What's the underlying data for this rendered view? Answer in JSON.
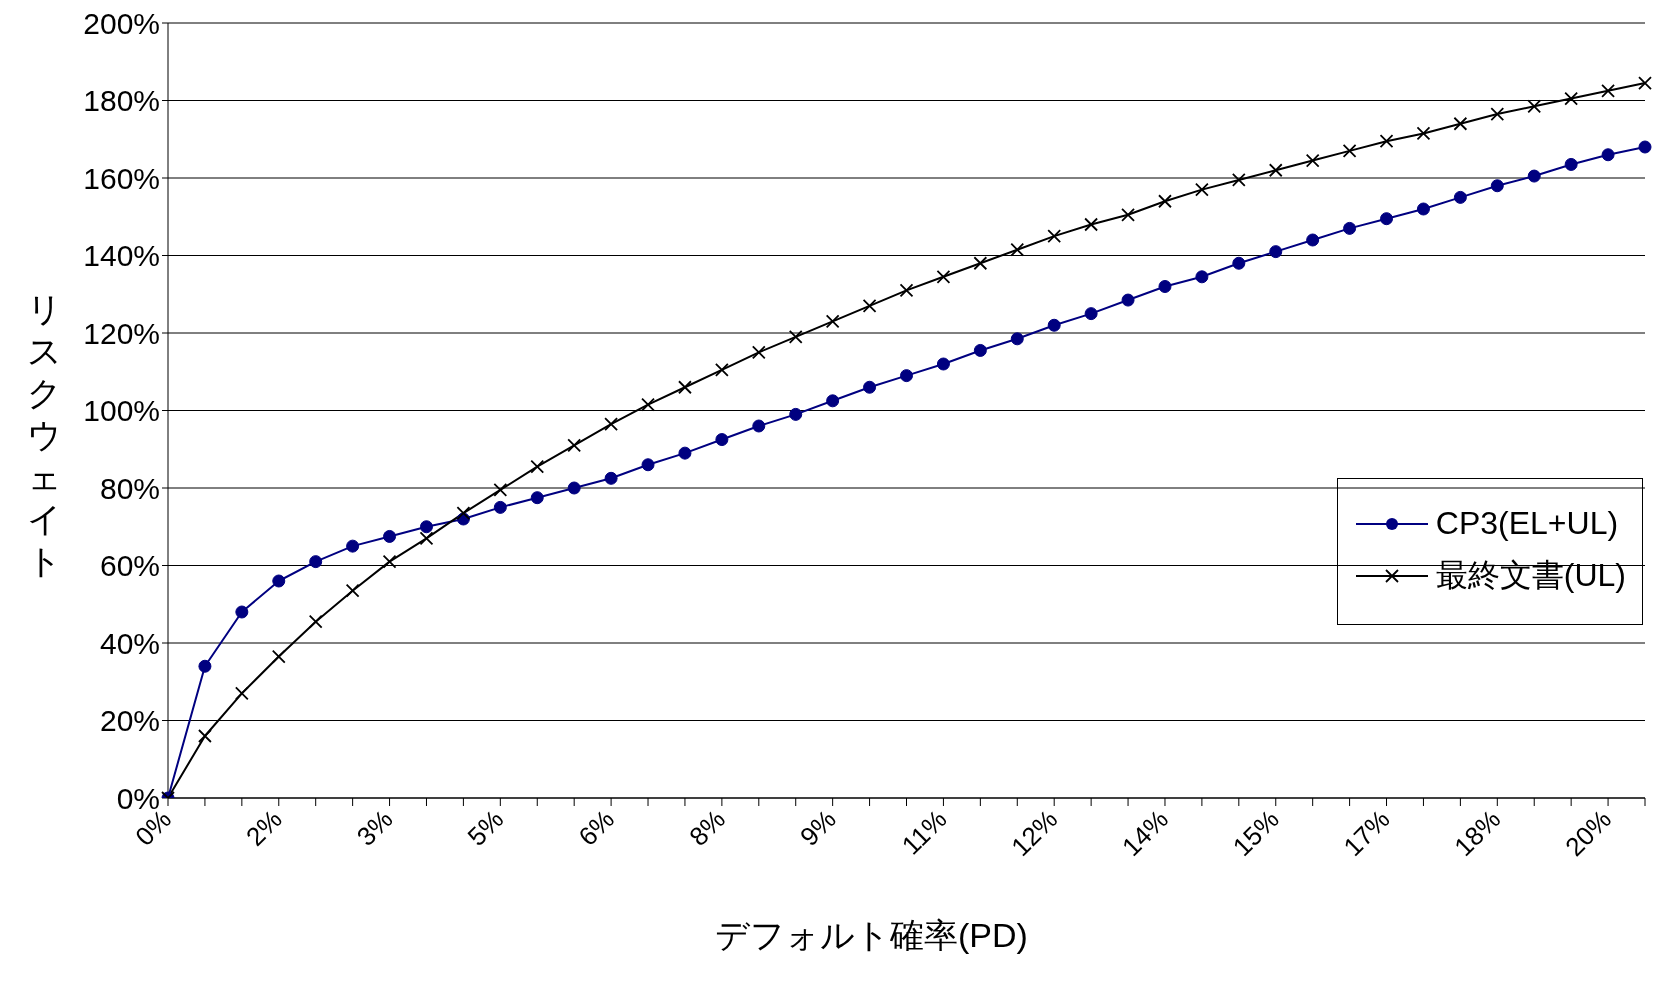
{
  "chart_data": {
    "type": "line",
    "xlabel": "デフォルト確率(PD)",
    "ylabel": "リスクウェイト",
    "categories": [
      "0%",
      null,
      null,
      "2%",
      null,
      null,
      "3%",
      null,
      null,
      "5%",
      null,
      null,
      "6%",
      null,
      null,
      "8%",
      null,
      null,
      "9%",
      null,
      null,
      "11%",
      null,
      null,
      "12%",
      null,
      null,
      "14%",
      null,
      null,
      "15%",
      null,
      null,
      "17%",
      null,
      null,
      "18%",
      null,
      null,
      "20%",
      null
    ],
    "series": [
      {
        "name": "CP3(EL+UL)",
        "color": "#000080",
        "marker": "circle",
        "values": [
          0,
          34,
          48,
          56,
          61,
          65,
          67.5,
          70,
          72,
          75,
          77.5,
          80,
          82.5,
          86,
          89,
          92.5,
          96,
          99,
          102.5,
          106,
          109,
          112,
          115.5,
          118.5,
          122,
          125,
          128.5,
          132,
          134.5,
          138,
          141,
          144,
          147,
          149.5,
          152,
          155,
          158,
          160.5,
          163.5,
          166,
          168
        ]
      },
      {
        "name": "最終文書(UL)",
        "color": "#000000",
        "marker": "cross",
        "values": [
          0,
          16,
          27,
          36.5,
          45.5,
          53.5,
          61,
          67,
          73.5,
          79.5,
          85.5,
          91,
          96.5,
          101.5,
          106,
          110.5,
          115,
          119,
          123,
          127,
          131,
          134.5,
          138,
          141.5,
          145,
          148,
          150.5,
          154,
          157,
          159.5,
          162,
          164.5,
          167,
          169.5,
          171.5,
          174,
          176.5,
          178.5,
          180.5,
          182.5,
          184.5
        ]
      }
    ],
    "ylim": [
      0,
      200
    ],
    "yticks": [
      {
        "value": 0,
        "label": "0%"
      },
      {
        "value": 20,
        "label": "20%"
      },
      {
        "value": 40,
        "label": "40%"
      },
      {
        "value": 60,
        "label": "60%"
      },
      {
        "value": 80,
        "label": "80%"
      },
      {
        "value": 100,
        "label": "100%"
      },
      {
        "value": 120,
        "label": "120%"
      },
      {
        "value": 140,
        "label": "140%"
      },
      {
        "value": 160,
        "label": "160%"
      },
      {
        "value": 180,
        "label": "180%"
      },
      {
        "value": 200,
        "label": "200%"
      }
    ],
    "grid": "y",
    "legend": "right",
    "line_style": "solid"
  }
}
